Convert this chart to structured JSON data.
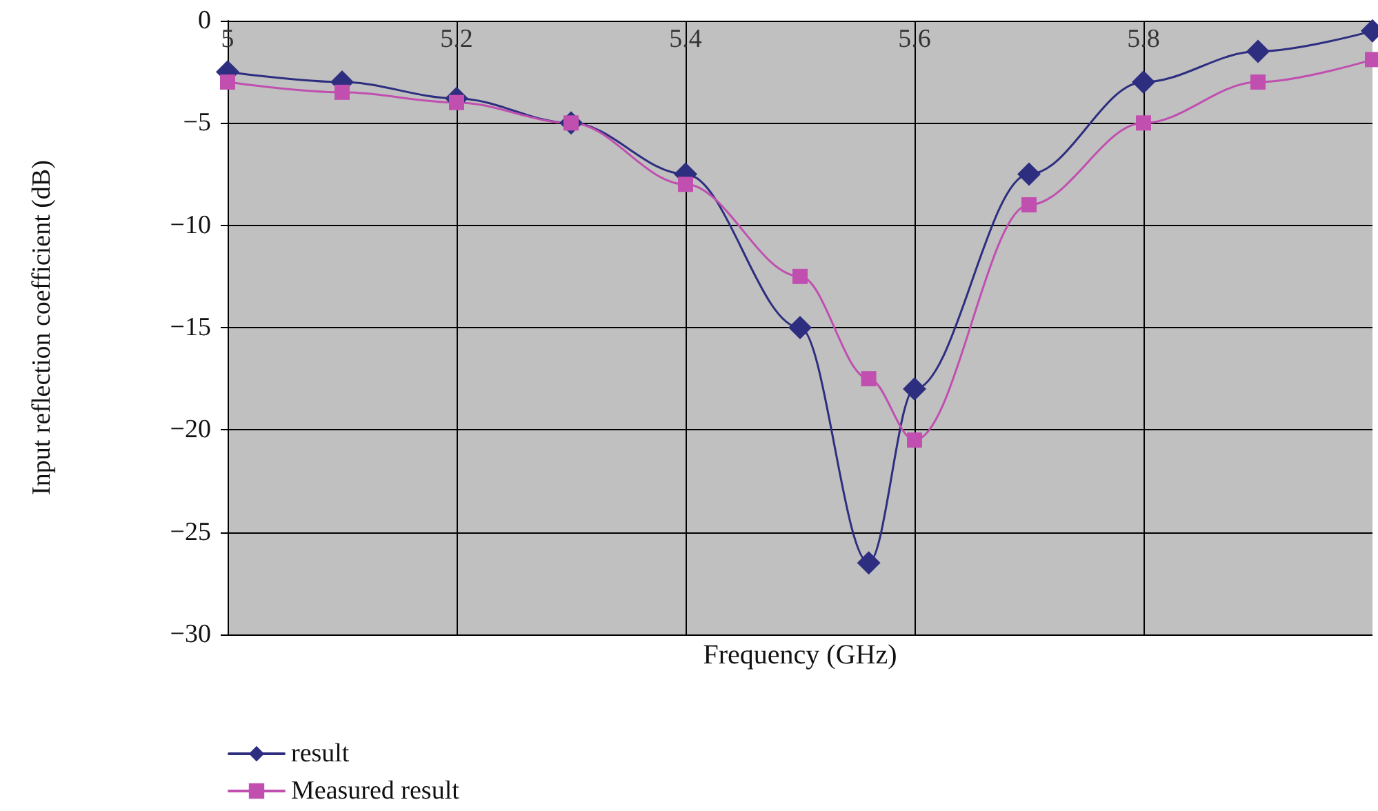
{
  "chart_data": {
    "type": "line",
    "xlabel": "Frequency (GHz)",
    "ylabel": "Input reflection coefficient (dB)",
    "xlim": [
      5,
      6
    ],
    "xticks": [
      5,
      5.2,
      5.4,
      5.6,
      5.8
    ],
    "ylim": [
      -30,
      0
    ],
    "yticks": [
      {
        "value": 0,
        "label": "0"
      },
      {
        "value": -5,
        "label": "−5"
      },
      {
        "value": -10,
        "label": "−10"
      },
      {
        "value": -15,
        "label": "−15"
      },
      {
        "value": -20,
        "label": "−20"
      },
      {
        "value": -25,
        "label": "−25"
      },
      {
        "value": -30,
        "label": "−30"
      }
    ],
    "grid": true,
    "legend": "bottom left",
    "line_style": "solid",
    "series": [
      {
        "name": "result",
        "color": "#2e2e80",
        "marker": "diamond",
        "x": [
          5,
          5.1,
          5.2,
          5.3,
          5.4,
          5.5,
          5.56,
          5.6,
          5.7,
          5.8,
          5.9,
          6
        ],
        "values": [
          -2.5,
          -3,
          -3.8,
          -5,
          -7.5,
          -15,
          -26.5,
          -18,
          -7.5,
          -3,
          -1.5,
          -0.5
        ]
      },
      {
        "name": "Measured result",
        "color": "#c04fb0",
        "marker": "square",
        "x": [
          5,
          5.1,
          5.2,
          5.3,
          5.4,
          5.5,
          5.56,
          5.6,
          5.7,
          5.8,
          5.9,
          6
        ],
        "values": [
          -3,
          -3.5,
          -4,
          -5,
          -8,
          -12.5,
          -17.5,
          -20.5,
          -9,
          -5,
          -3,
          -1.9
        ]
      }
    ]
  }
}
